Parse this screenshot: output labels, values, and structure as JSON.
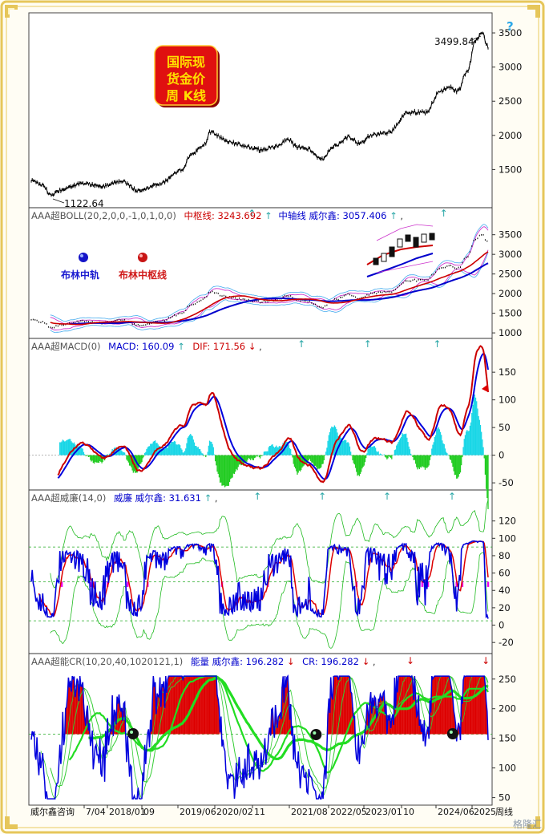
{
  "colors": {
    "frame": "#e6c65a",
    "price": "#000000",
    "boll_mid": "#cc0000",
    "boll_band": "#0000cc",
    "macd_pos": "#19d6e6",
    "macd_neg": "#22cc22",
    "wr_fast": "#0000dd",
    "wr_slow": "#dd0000",
    "wr_band": "#22bb22",
    "cr_line": "#0000dd",
    "cr_ma": "#22dd22",
    "cr_fill": "#dd0000"
  },
  "badge": {
    "line1": "国际现",
    "line2": "货金价",
    "line3": "周 K线"
  },
  "help_mark": "?",
  "panels": {
    "price": {
      "high_label": "3499.84",
      "low_label": "1122.64",
      "yticks": [
        "3500",
        "3000",
        "2500",
        "2000",
        "1500"
      ]
    },
    "boll": {
      "title": "AAA超BOLL(20,2,0,0,-1,0,1,0,0)",
      "mid_text": "中枢线: 3243.692",
      "mid_arrow": "↑",
      "axis_text": "中轴线 威尔鑫: 3057.406",
      "axis_arrow": "↑",
      "tail": ",",
      "legend_mid": "布林中轨",
      "legend_pivot": "布林中枢线",
      "yticks": [
        "3500",
        "3000",
        "2500",
        "2000",
        "1500",
        "1000"
      ]
    },
    "macd": {
      "title": "AAA超MACD(0)",
      "macd_text": "MACD: 160.09",
      "macd_arrow": "↑",
      "dif_text": "DIF: 171.56",
      "dif_arrow": "↓",
      "tail": ",",
      "yticks": [
        "150",
        "100",
        "50",
        "0",
        "-50"
      ]
    },
    "wr": {
      "title": "AAA超威廉(14,0)",
      "value_text": "威廉 威尔鑫: 31.631",
      "value_arrow": "↑",
      "tail": ",",
      "yticks": [
        "120",
        "100",
        "80",
        "60",
        "40",
        "20",
        "0",
        "-20"
      ]
    },
    "cr": {
      "title": "AAA超能CR(10,20,40,1020121,1)",
      "energy_text": "能量 威尔鑫: 196.282",
      "energy_arrow": "↓",
      "cr_text": "CR: 196.282",
      "cr_arrow": "↓",
      "tail": ",",
      "yticks": [
        "250",
        "200",
        "150",
        "100",
        "50"
      ]
    }
  },
  "xaxis": {
    "labels": [
      "威尔鑫咨询",
      "7/04",
      "2018/01",
      "09",
      "2019/06",
      "2020/02",
      "11",
      "2021/08",
      "2022/05",
      "2023/01",
      "10",
      "2024/06",
      "2025",
      "周线"
    ]
  },
  "watermark": "格隆汇",
  "chart_data": {
    "type": "line",
    "price_anchors": [
      [
        0,
        1340
      ],
      [
        0.04,
        1270
      ],
      [
        0.065,
        1122.64
      ],
      [
        0.1,
        1200
      ],
      [
        0.17,
        1300
      ],
      [
        0.24,
        1250
      ],
      [
        0.3,
        1330
      ],
      [
        0.36,
        1190
      ],
      [
        0.43,
        1290
      ],
      [
        0.5,
        1480
      ],
      [
        0.54,
        1740
      ],
      [
        0.58,
        1870
      ],
      [
        0.6,
        2050
      ],
      [
        0.66,
        1910
      ],
      [
        0.71,
        1850
      ],
      [
        0.77,
        1790
      ],
      [
        0.82,
        1840
      ],
      [
        0.86,
        1950
      ],
      [
        0.89,
        1830
      ],
      [
        0.93,
        1800
      ],
      [
        0.97,
        1650
      ],
      [
        1.02,
        1850
      ],
      [
        1.06,
        1980
      ],
      [
        1.1,
        1880
      ],
      [
        1.14,
        2000
      ],
      [
        1.2,
        2050
      ],
      [
        1.26,
        2340
      ],
      [
        1.32,
        2330
      ],
      [
        1.37,
        2640
      ],
      [
        1.4,
        2700
      ],
      [
        1.43,
        2650
      ],
      [
        1.46,
        2950
      ],
      [
        1.49,
        3400
      ],
      [
        1.51,
        3499.84
      ],
      [
        1.53,
        3300
      ]
    ],
    "price_note": "x is time fraction of panel width (0 = 2016 start, 1.53 = end); y is USD/oz",
    "boll_now": {
      "mid_pivot": 3243.692,
      "mid_axis": 3057.406
    },
    "macd_now": {
      "macd": 160.09,
      "dif": 171.56
    },
    "wr_now": 31.631,
    "cr_now": 196.282,
    "axes": {
      "price": {
        "ylim": [
          1000,
          3700
        ]
      },
      "boll": {
        "ylim": [
          900,
          3800
        ]
      },
      "macd": {
        "ylim": [
          -60,
          185
        ]
      },
      "wr": {
        "ylim": [
          -30,
          140
        ]
      },
      "cr": {
        "ylim": [
          40,
          270
        ]
      }
    }
  }
}
